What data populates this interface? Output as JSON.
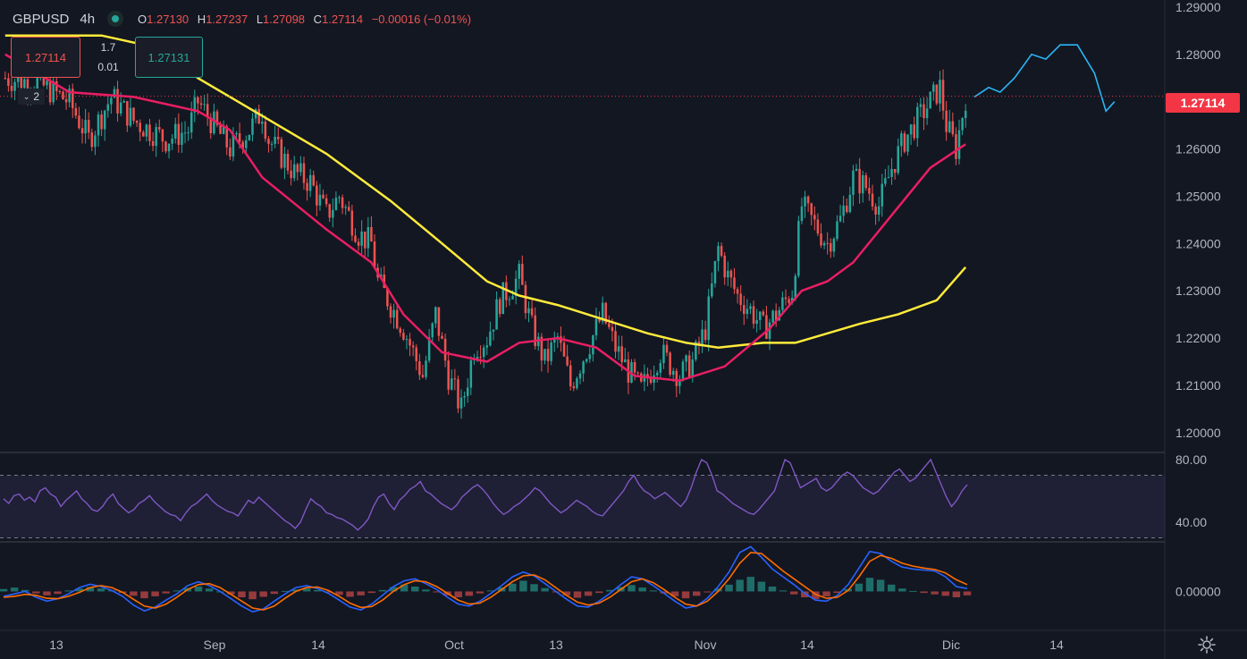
{
  "legend": {
    "symbol": "GBPUSD",
    "timeframe": "4h",
    "open_label": "O",
    "open": "1.27130",
    "high_label": "H",
    "high": "1.27237",
    "low_label": "L",
    "low": "1.27098",
    "close_label": "C",
    "close": "1.27114",
    "change": "−0.00016 (−0.01%)"
  },
  "trade": {
    "sell_price": "1.27114",
    "buy_price": "1.27131",
    "spread_top": "1.7",
    "spread_bottom": "0.01",
    "collapse_count": "2"
  },
  "last_price": "1.27114",
  "colors": {
    "background": "#131722",
    "up": "#26a69a",
    "down": "#ef5350",
    "ma_fast": "#e91e63",
    "ma_slow": "#ffeb3b",
    "rsi": "#7e57c2",
    "macd": "#2962ff",
    "signal": "#ff6d00",
    "projection": "#29b6f6",
    "price_badge": "#f23645"
  },
  "chart_data": [
    {
      "type": "candlestick",
      "name_in_legend": "GBPUSD",
      "y_ticks": [
        "1.29000",
        "1.28000",
        "1.27000",
        "1.26000",
        "1.25000",
        "1.24000",
        "1.23000",
        "1.22000",
        "1.21000",
        "1.20000"
      ],
      "x_ticks": [
        "13",
        "Sep",
        "14",
        "Oct",
        "13",
        "Nov",
        "14",
        "Dic",
        "14"
      ],
      "ylim": [
        1.196,
        1.2915
      ],
      "close_path": [
        [
          0,
          1.275
        ],
        [
          10,
          1.274
        ],
        [
          20,
          1.27
        ],
        [
          26,
          1.262
        ],
        [
          33,
          1.271
        ],
        [
          40,
          1.266
        ],
        [
          50,
          1.262
        ],
        [
          57,
          1.264
        ],
        [
          60,
          1.27
        ],
        [
          70,
          1.26
        ],
        [
          76,
          1.264
        ],
        [
          80,
          1.268
        ],
        [
          82,
          1.262
        ],
        [
          90,
          1.255
        ],
        [
          95,
          1.253
        ],
        [
          100,
          1.246
        ],
        [
          104,
          1.25
        ],
        [
          110,
          1.242
        ],
        [
          114,
          1.24
        ],
        [
          116,
          1.232
        ],
        [
          124,
          1.222
        ],
        [
          130,
          1.212
        ],
        [
          134,
          1.225
        ],
        [
          138,
          1.212
        ],
        [
          142,
          1.205
        ],
        [
          146,
          1.218
        ],
        [
          150,
          1.22
        ],
        [
          154,
          1.228
        ],
        [
          160,
          1.233
        ],
        [
          164,
          1.222
        ],
        [
          168,
          1.215
        ],
        [
          172,
          1.22
        ],
        [
          176,
          1.21
        ],
        [
          182,
          1.219
        ],
        [
          186,
          1.225
        ],
        [
          190,
          1.218
        ],
        [
          194,
          1.213
        ],
        [
          198,
          1.209
        ],
        [
          204,
          1.217
        ],
        [
          210,
          1.212
        ],
        [
          214,
          1.215
        ],
        [
          218,
          1.222
        ],
        [
          222,
          1.239
        ],
        [
          225,
          1.233
        ],
        [
          228,
          1.229
        ],
        [
          232,
          1.226
        ],
        [
          236,
          1.222
        ],
        [
          240,
          1.225
        ],
        [
          245,
          1.23
        ],
        [
          248,
          1.248
        ],
        [
          252,
          1.244
        ],
        [
          256,
          1.24
        ],
        [
          260,
          1.245
        ],
        [
          264,
          1.254
        ],
        [
          268,
          1.252
        ],
        [
          272,
          1.248
        ],
        [
          276,
          1.256
        ],
        [
          280,
          1.262
        ],
        [
          284,
          1.266
        ],
        [
          288,
          1.27
        ],
        [
          291,
          1.273
        ],
        [
          293,
          1.265
        ],
        [
          296,
          1.26
        ],
        [
          299,
          1.271
        ]
      ]
    },
    {
      "type": "line",
      "name": "",
      "description_role": "moving average fast",
      "points": [
        [
          0,
          1.28
        ],
        [
          20,
          1.272
        ],
        [
          40,
          1.271
        ],
        [
          60,
          1.268
        ],
        [
          70,
          1.264
        ],
        [
          80,
          1.254
        ],
        [
          100,
          1.243
        ],
        [
          114,
          1.236
        ],
        [
          124,
          1.225
        ],
        [
          136,
          1.217
        ],
        [
          150,
          1.215
        ],
        [
          160,
          1.219
        ],
        [
          172,
          1.22
        ],
        [
          184,
          1.218
        ],
        [
          196,
          1.212
        ],
        [
          210,
          1.211
        ],
        [
          224,
          1.214
        ],
        [
          238,
          1.222
        ],
        [
          248,
          1.23
        ],
        [
          256,
          1.232
        ],
        [
          264,
          1.236
        ],
        [
          276,
          1.246
        ],
        [
          288,
          1.256
        ],
        [
          299,
          1.261
        ]
      ]
    },
    {
      "type": "line",
      "name": "",
      "description_role": "moving average slow",
      "points": [
        [
          0,
          1.284
        ],
        [
          30,
          1.284
        ],
        [
          50,
          1.281
        ],
        [
          60,
          1.275
        ],
        [
          80,
          1.267
        ],
        [
          100,
          1.259
        ],
        [
          120,
          1.249
        ],
        [
          136,
          1.24
        ],
        [
          150,
          1.232
        ],
        [
          160,
          1.229
        ],
        [
          172,
          1.227
        ],
        [
          186,
          1.224
        ],
        [
          200,
          1.221
        ],
        [
          212,
          1.219
        ],
        [
          222,
          1.218
        ],
        [
          236,
          1.219
        ],
        [
          246,
          1.219
        ],
        [
          256,
          1.221
        ],
        [
          266,
          1.223
        ],
        [
          278,
          1.225
        ],
        [
          290,
          1.228
        ],
        [
          299,
          1.235
        ]
      ]
    },
    {
      "type": "line",
      "description_role": "projection",
      "points": [
        [
          0,
          1.271
        ],
        [
          5,
          1.273
        ],
        [
          9,
          1.272
        ],
        [
          14,
          1.275
        ],
        [
          20,
          1.28
        ],
        [
          25,
          1.279
        ],
        [
          30,
          1.282
        ],
        [
          36,
          1.282
        ],
        [
          42,
          1.276
        ],
        [
          46,
          1.268
        ],
        [
          49,
          1.27
        ]
      ]
    },
    {
      "type": "line",
      "description_role": "RSI",
      "y_ticks": [
        "80.00",
        "40.00"
      ],
      "ylim": [
        28,
        84
      ],
      "bands": [
        70,
        30
      ],
      "values": [
        55,
        52,
        57,
        58,
        54,
        56,
        53,
        60,
        62,
        58,
        56,
        50,
        54,
        57,
        60,
        55,
        52,
        48,
        47,
        50,
        55,
        58,
        52,
        49,
        46,
        48,
        52,
        54,
        57,
        53,
        50,
        47,
        45,
        44,
        41,
        46,
        50,
        52,
        55,
        58,
        54,
        51,
        49,
        47,
        46,
        44,
        49,
        54,
        52,
        56,
        53,
        50,
        47,
        44,
        41,
        39,
        36,
        40,
        48,
        55,
        52,
        50,
        46,
        45,
        43,
        42,
        40,
        38,
        35,
        38,
        42,
        50,
        56,
        58,
        52,
        48,
        54,
        57,
        61,
        63,
        66,
        60,
        58,
        55,
        52,
        50,
        48,
        51,
        56,
        59,
        62,
        64,
        61,
        57,
        52,
        48,
        45,
        47,
        50,
        52,
        55,
        58,
        62,
        60,
        56,
        52,
        49,
        46,
        48,
        51,
        54,
        52,
        50,
        47,
        45,
        44,
        48,
        52,
        56,
        60,
        66,
        70,
        64,
        60,
        58,
        55,
        57,
        59,
        56,
        53,
        50,
        54,
        62,
        72,
        80,
        78,
        70,
        60,
        58,
        55,
        52,
        50,
        48,
        46,
        45,
        48,
        52,
        56,
        60,
        70,
        80,
        78,
        70,
        62,
        64,
        66,
        68,
        62,
        60,
        62,
        66,
        70,
        72,
        70,
        66,
        62,
        60,
        58,
        60,
        64,
        68,
        72,
        74,
        70,
        66,
        68,
        72,
        76,
        80,
        72,
        64,
        56,
        50,
        54,
        60,
        64
      ],
      "series_count": 1
    },
    {
      "type": "bar_and_lines",
      "description_role": "MACD",
      "y_ticks": [
        "0.00000"
      ],
      "ylim": [
        -0.008,
        0.01
      ],
      "histogram": [
        0.0005,
        0.0008,
        0.0003,
        -0.0004,
        -0.0008,
        -0.0005,
        0.0002,
        0.0006,
        0.0009,
        0.0006,
        0.0002,
        -0.0003,
        -0.0009,
        -0.0014,
        -0.001,
        -0.0004,
        0.0002,
        0.0007,
        0.001,
        0.0006,
        0.0,
        -0.0006,
        -0.0012,
        -0.0016,
        -0.0011,
        -0.0005,
        0.0001,
        0.0004,
        0.0006,
        0.0003,
        -0.0002,
        -0.0007,
        -0.0011,
        -0.0008,
        -0.0003,
        0.0003,
        0.0009,
        0.0014,
        0.001,
        0.0004,
        -0.0002,
        -0.0008,
        -0.0012,
        -0.0009,
        -0.0004,
        0.0002,
        0.0008,
        0.0016,
        0.0022,
        0.0015,
        0.0007,
        -0.0001,
        -0.0008,
        -0.0013,
        -0.0009,
        -0.0003,
        0.0003,
        0.0009,
        0.0013,
        0.0008,
        0.0002,
        -0.0004,
        -0.001,
        -0.0014,
        -0.0009,
        -0.0002,
        0.0006,
        0.0014,
        0.0024,
        0.003,
        0.002,
        0.001,
        0.0002,
        -0.0006,
        -0.0012,
        -0.0016,
        -0.001,
        -0.0003,
        0.0005,
        0.0016,
        0.0028,
        0.0024,
        0.0014,
        0.0006,
        0.0001,
        -0.0003,
        -0.0006,
        -0.0009,
        -0.0012,
        -0.0008
      ],
      "macd_line": [
        -0.001,
        -0.0005,
        0.0,
        -0.0012,
        -0.002,
        -0.0015,
        -0.0005,
        0.0008,
        0.0015,
        0.001,
        0.0002,
        -0.001,
        -0.0028,
        -0.004,
        -0.0032,
        -0.0018,
        -0.0005,
        0.0012,
        0.002,
        0.0012,
        0.0,
        -0.0015,
        -0.003,
        -0.0042,
        -0.0036,
        -0.002,
        -0.0005,
        0.0008,
        0.0012,
        0.0006,
        -0.0004,
        -0.0018,
        -0.0032,
        -0.0038,
        -0.0026,
        -0.0008,
        0.001,
        0.0022,
        0.0026,
        0.0016,
        0.0004,
        -0.0012,
        -0.0026,
        -0.003,
        -0.002,
        -0.0004,
        0.0012,
        0.003,
        0.004,
        0.0032,
        0.0016,
        0.0,
        -0.0016,
        -0.003,
        -0.0032,
        -0.002,
        -0.0004,
        0.0014,
        0.003,
        0.0026,
        0.0012,
        -0.0004,
        -0.002,
        -0.0034,
        -0.003,
        -0.0014,
        0.001,
        0.004,
        0.008,
        0.0092,
        0.007,
        0.0046,
        0.003,
        0.0014,
        -0.0004,
        -0.0018,
        -0.002,
        -0.0008,
        0.0014,
        0.0048,
        0.0082,
        0.0078,
        0.0062,
        0.005,
        0.0046,
        0.0044,
        0.0042,
        0.003,
        0.001,
        0.0006
      ],
      "signal_line": [
        -0.0012,
        -0.001,
        -0.0006,
        -0.0008,
        -0.0014,
        -0.0015,
        -0.001,
        -0.0002,
        0.0008,
        0.0012,
        0.0008,
        -0.0002,
        -0.0016,
        -0.003,
        -0.0034,
        -0.0026,
        -0.0012,
        0.0004,
        0.0014,
        0.0016,
        0.0008,
        -0.0006,
        -0.002,
        -0.0034,
        -0.0038,
        -0.003,
        -0.0014,
        0.0,
        0.0008,
        0.0009,
        0.0002,
        -0.001,
        -0.0024,
        -0.0033,
        -0.0031,
        -0.0018,
        0.0,
        0.0014,
        0.0022,
        0.002,
        0.001,
        -0.0004,
        -0.0018,
        -0.0026,
        -0.0024,
        -0.0012,
        0.0004,
        0.002,
        0.0032,
        0.0034,
        0.0024,
        0.0008,
        -0.0008,
        -0.0022,
        -0.0028,
        -0.0024,
        -0.0012,
        0.0004,
        0.002,
        0.0026,
        0.0018,
        0.0004,
        -0.0012,
        -0.0026,
        -0.003,
        -0.002,
        0.0,
        0.0026,
        0.0058,
        0.008,
        0.0078,
        0.006,
        0.0042,
        0.0026,
        0.001,
        -0.0006,
        -0.0014,
        -0.0012,
        0.0002,
        0.003,
        0.0062,
        0.0074,
        0.0068,
        0.0058,
        0.0052,
        0.0048,
        0.0045,
        0.0038,
        0.0024,
        0.0014
      ]
    }
  ]
}
